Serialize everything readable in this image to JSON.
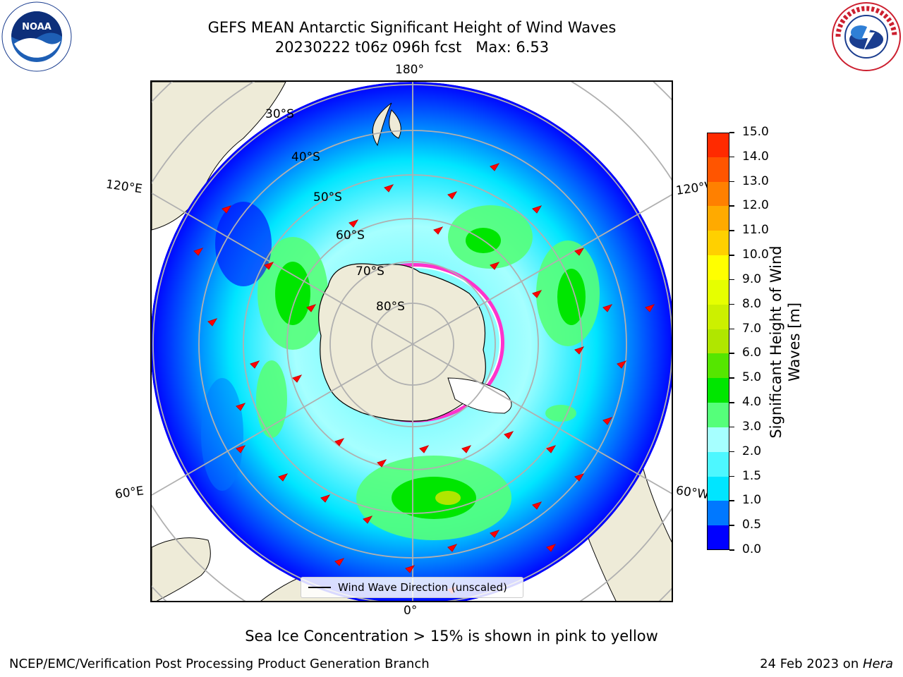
{
  "title": {
    "line1": "GEFS MEAN Antarctic Significant Height of Wind Waves",
    "line2": "20230222 t06z 096h fcst   Max: 6.53"
  },
  "map": {
    "projection": "south-polar-stereographic",
    "longitude_labels": {
      "top": "180°",
      "bottom": "0°",
      "upper_left": "120°E",
      "upper_right": "120°W",
      "lower_left": "60°E",
      "lower_right": "60°W"
    },
    "latitude_labels": [
      "30°S",
      "40°S",
      "50°S",
      "60°S",
      "70°S",
      "80°S"
    ],
    "legend_label": "Wind Wave Direction (unscaled)",
    "arrow_color": "#ff0000",
    "land_color": "#eeebd8",
    "grid_color": "#b0b0b0"
  },
  "colorbar": {
    "label": "Significant Height of Wind Waves [m]",
    "label_line1": "Significant Height of Wind",
    "label_line2": "Waves [m]",
    "ticks": [
      "0.0",
      "0.5",
      "1.0",
      "1.5",
      "2.0",
      "3.0",
      "4.0",
      "5.0",
      "6.0",
      "7.0",
      "8.0",
      "9.0",
      "10.0",
      "11.0",
      "12.0",
      "13.0",
      "14.0",
      "15.0"
    ],
    "colors": [
      "#0000ff",
      "#0078ff",
      "#00e5ff",
      "#4df7ff",
      "#a6ffff",
      "#55ff7a",
      "#00e600",
      "#55e600",
      "#b0e600",
      "#ccf000",
      "#e6ff00",
      "#ffff00",
      "#ffd000",
      "#ffaa00",
      "#ff8000",
      "#ff5500",
      "#ff2a00",
      "#ff0000"
    ]
  },
  "ice_note": "Sea Ice Concentration > 15% is shown in pink to yellow",
  "footer": {
    "left": "NCEP/EMC/Verification Post Processing Product Generation Branch",
    "right_prefix": "24 Feb 2023 on ",
    "right_machine": "Hera"
  },
  "logos": {
    "left": "NOAA",
    "left_ring": "NATIONAL OCEANIC AND ATMOSPHERIC ADMINISTRATION · U.S. DEPARTMENT OF COMMERCE",
    "right_ring": "NATIONAL WEATHER SERVICE"
  }
}
